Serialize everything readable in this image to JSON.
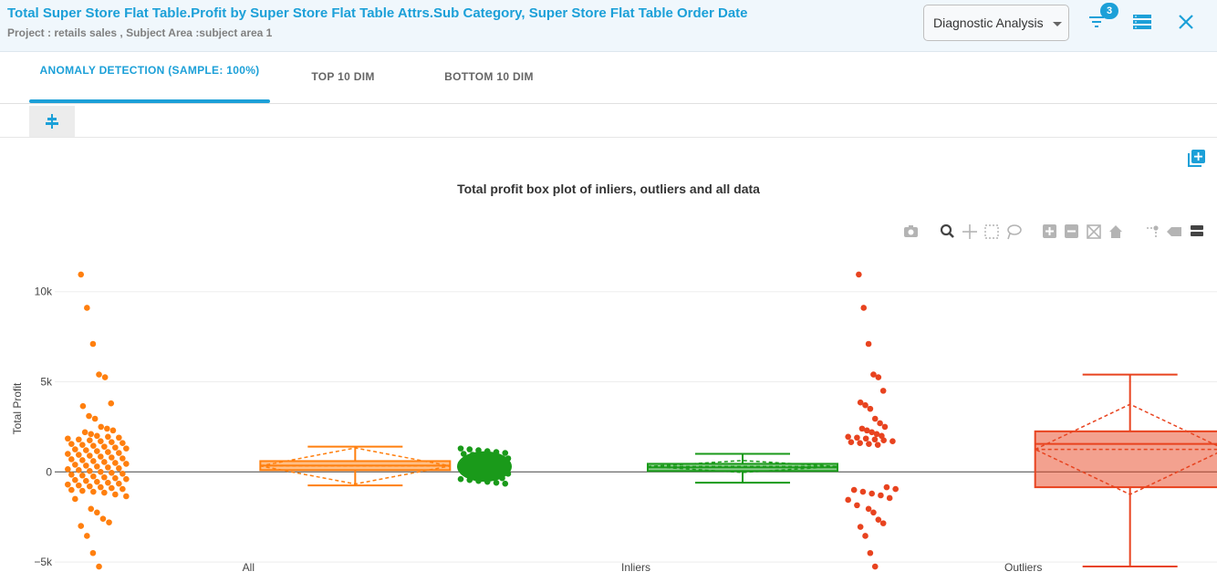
{
  "header": {
    "title": "Total Super Store Flat Table.Profit by Super Store Flat Table Attrs.Sub Category, Super Store Flat Table Order Date",
    "subtitle": "Project : retails sales ,  Subject Area :subject area 1",
    "dropdown_value": "Diagnostic Analysis",
    "filter_count": "3"
  },
  "tabs": [
    {
      "label": "ANOMALY DETECTION (SAMPLE: 100%)",
      "active": true
    },
    {
      "label": "TOP 10 DIM",
      "active": false
    },
    {
      "label": "BOTTOM 10 DIM",
      "active": false
    }
  ],
  "modebar_icons": [
    "camera-icon",
    "zoom-icon",
    "pan-icon",
    "box-select-icon",
    "lasso-icon",
    "zoom-in-icon",
    "zoom-out-icon",
    "autoscale-icon",
    "reset-axes-icon",
    "spike-lines-icon",
    "hover-closest-icon",
    "hover-compare-icon"
  ],
  "colors": {
    "accent": "#1ca0d8",
    "all": "#ff7f0e",
    "inliers": "#1a9a1a",
    "outliers": "#e8431f"
  },
  "chart_data": {
    "type": "box",
    "title": "Total profit box plot of inliers, outliers and all data",
    "xlabel": "",
    "ylabel": "Total Profit",
    "ylim": [
      -5500,
      11300
    ],
    "yticks": [
      {
        "value": -5000,
        "label": "−5k"
      },
      {
        "value": 0,
        "label": "0"
      },
      {
        "value": 5000,
        "label": "5k"
      },
      {
        "value": 10000,
        "label": "10k"
      }
    ],
    "grid": true,
    "categories": [
      "All",
      "Inliers",
      "Outliers"
    ],
    "series": [
      {
        "name": "All",
        "color": "#ff7f0e",
        "box": {
          "lowerfence": -750,
          "q1": 100,
          "median": 350,
          "q3": 600,
          "upperfence": 1400,
          "mean": 330,
          "sd": 1000
        },
        "points": [
          10950,
          9100,
          7100,
          5400,
          5250,
          3800,
          3650,
          3100,
          2950,
          2500,
          2400,
          2300,
          2200,
          2100,
          2000,
          1950,
          1900,
          1850,
          1800,
          1750,
          1700,
          1650,
          1600,
          1550,
          1500,
          1450,
          1400,
          1350,
          1300,
          1250,
          1200,
          1150,
          1100,
          1050,
          1000,
          950,
          900,
          850,
          800,
          750,
          700,
          650,
          600,
          550,
          500,
          450,
          400,
          350,
          300,
          250,
          200,
          150,
          100,
          50,
          0,
          -50,
          -100,
          -150,
          -200,
          -250,
          -300,
          -350,
          -400,
          -450,
          -500,
          -550,
          -600,
          -650,
          -700,
          -750,
          -800,
          -850,
          -900,
          -950,
          -1000,
          -1050,
          -1100,
          -1150,
          -1250,
          -1350,
          -1500,
          -2050,
          -2250,
          -2600,
          -2800,
          -3000,
          -3550,
          -4500,
          -5250
        ]
      },
      {
        "name": "Inliers",
        "color": "#1a9a1a",
        "box": {
          "lowerfence": -600,
          "q1": 50,
          "median": 250,
          "q3": 450,
          "upperfence": 1000,
          "mean": 300,
          "sd": 330
        },
        "points": [
          1300,
          1250,
          1200,
          1150,
          1100,
          1050,
          1000,
          950,
          900,
          850,
          800,
          750,
          700,
          650,
          600,
          550,
          500,
          450,
          400,
          350,
          300,
          250,
          200,
          150,
          100,
          50,
          0,
          -50,
          -100,
          -150,
          -200,
          -250,
          -300,
          -350,
          -400,
          -450,
          -500,
          -550,
          -600,
          -650
        ]
      },
      {
        "name": "Outliers",
        "color": "#e8431f",
        "box": {
          "lowerfence": -5250,
          "q1": -850,
          "median": 1550,
          "q3": 2250,
          "upperfence": 5400,
          "mean": 1250,
          "sd": 2500
        },
        "points": [
          10950,
          9100,
          7100,
          5400,
          5250,
          4500,
          3850,
          3700,
          3500,
          2950,
          2700,
          2500,
          2400,
          2300,
          2200,
          2100,
          2000,
          1950,
          1900,
          1850,
          1800,
          1750,
          1700,
          1650,
          1600,
          1550,
          1500,
          -850,
          -950,
          -1000,
          -1100,
          -1200,
          -1300,
          -1450,
          -1550,
          -1850,
          -2050,
          -2250,
          -2650,
          -2850,
          -3050,
          -3550,
          -4500,
          -5250
        ]
      }
    ]
  }
}
